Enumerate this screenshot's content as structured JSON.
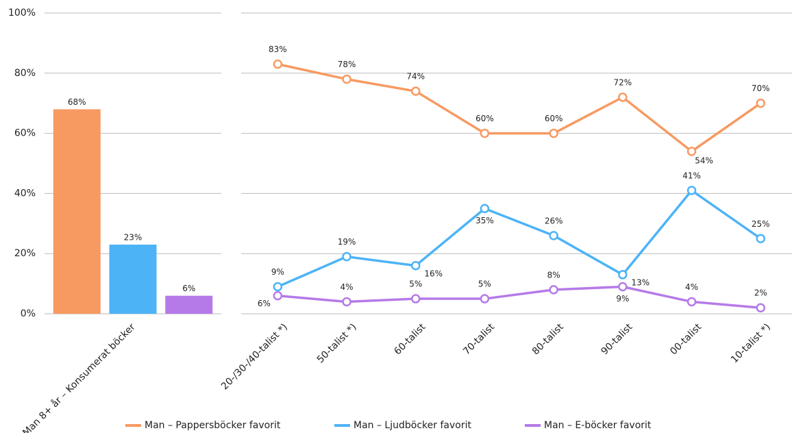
{
  "chart_data": [
    {
      "type": "bar",
      "categories": [
        "Man 8+ år – Konsumerat böcker"
      ],
      "series": [
        {
          "color": "#f79a62",
          "values": [
            68
          ],
          "value_labels": [
            "68%"
          ]
        },
        {
          "color": "#4db3f7",
          "values": [
            23
          ],
          "value_labels": [
            "23%"
          ]
        },
        {
          "color": "#b57ae8",
          "values": [
            6
          ],
          "value_labels": [
            "6%"
          ]
        }
      ],
      "ylim": [
        0,
        100
      ],
      "yticks": [
        {
          "value": 0,
          "label": "0%"
        },
        {
          "value": 20,
          "label": "20%"
        },
        {
          "value": 40,
          "label": "40%"
        },
        {
          "value": 60,
          "label": "60%"
        },
        {
          "value": 80,
          "label": "80%"
        },
        {
          "value": 100,
          "label": "100%"
        }
      ],
      "grid": true
    },
    {
      "type": "line",
      "categories": [
        "20-/30-/40-talist *)",
        "50-talist *)",
        "60-talist",
        "70-talist",
        "80-talist",
        "90-talist",
        "00-talist",
        "10-talist *)"
      ],
      "series": [
        {
          "name": "Man – Pappersböcker favorit",
          "color": "#f79a62",
          "values": [
            83,
            78,
            74,
            60,
            60,
            72,
            54,
            70
          ],
          "value_labels": [
            "83%",
            "78%",
            "74%",
            "60%",
            "60%",
            "72%",
            "54%",
            "70%"
          ]
        },
        {
          "name": "Man – Ljudböcker favorit",
          "color": "#4db3f7",
          "values": [
            9,
            19,
            16,
            35,
            26,
            13,
            41,
            25
          ],
          "value_labels": [
            "9%",
            "19%",
            "16%",
            "35%",
            "26%",
            "13%",
            "41%",
            "25%"
          ]
        },
        {
          "name": "Man – E-böcker favorit",
          "color": "#b57ae8",
          "values": [
            6,
            4,
            5,
            5,
            8,
            9,
            4,
            2
          ],
          "value_labels": [
            "6%",
            "4%",
            "5%",
            "5%",
            "8%",
            "9%",
            "4%",
            "2%"
          ]
        }
      ],
      "ylim": [
        0,
        100
      ],
      "grid": true,
      "legend": "bottom"
    }
  ]
}
